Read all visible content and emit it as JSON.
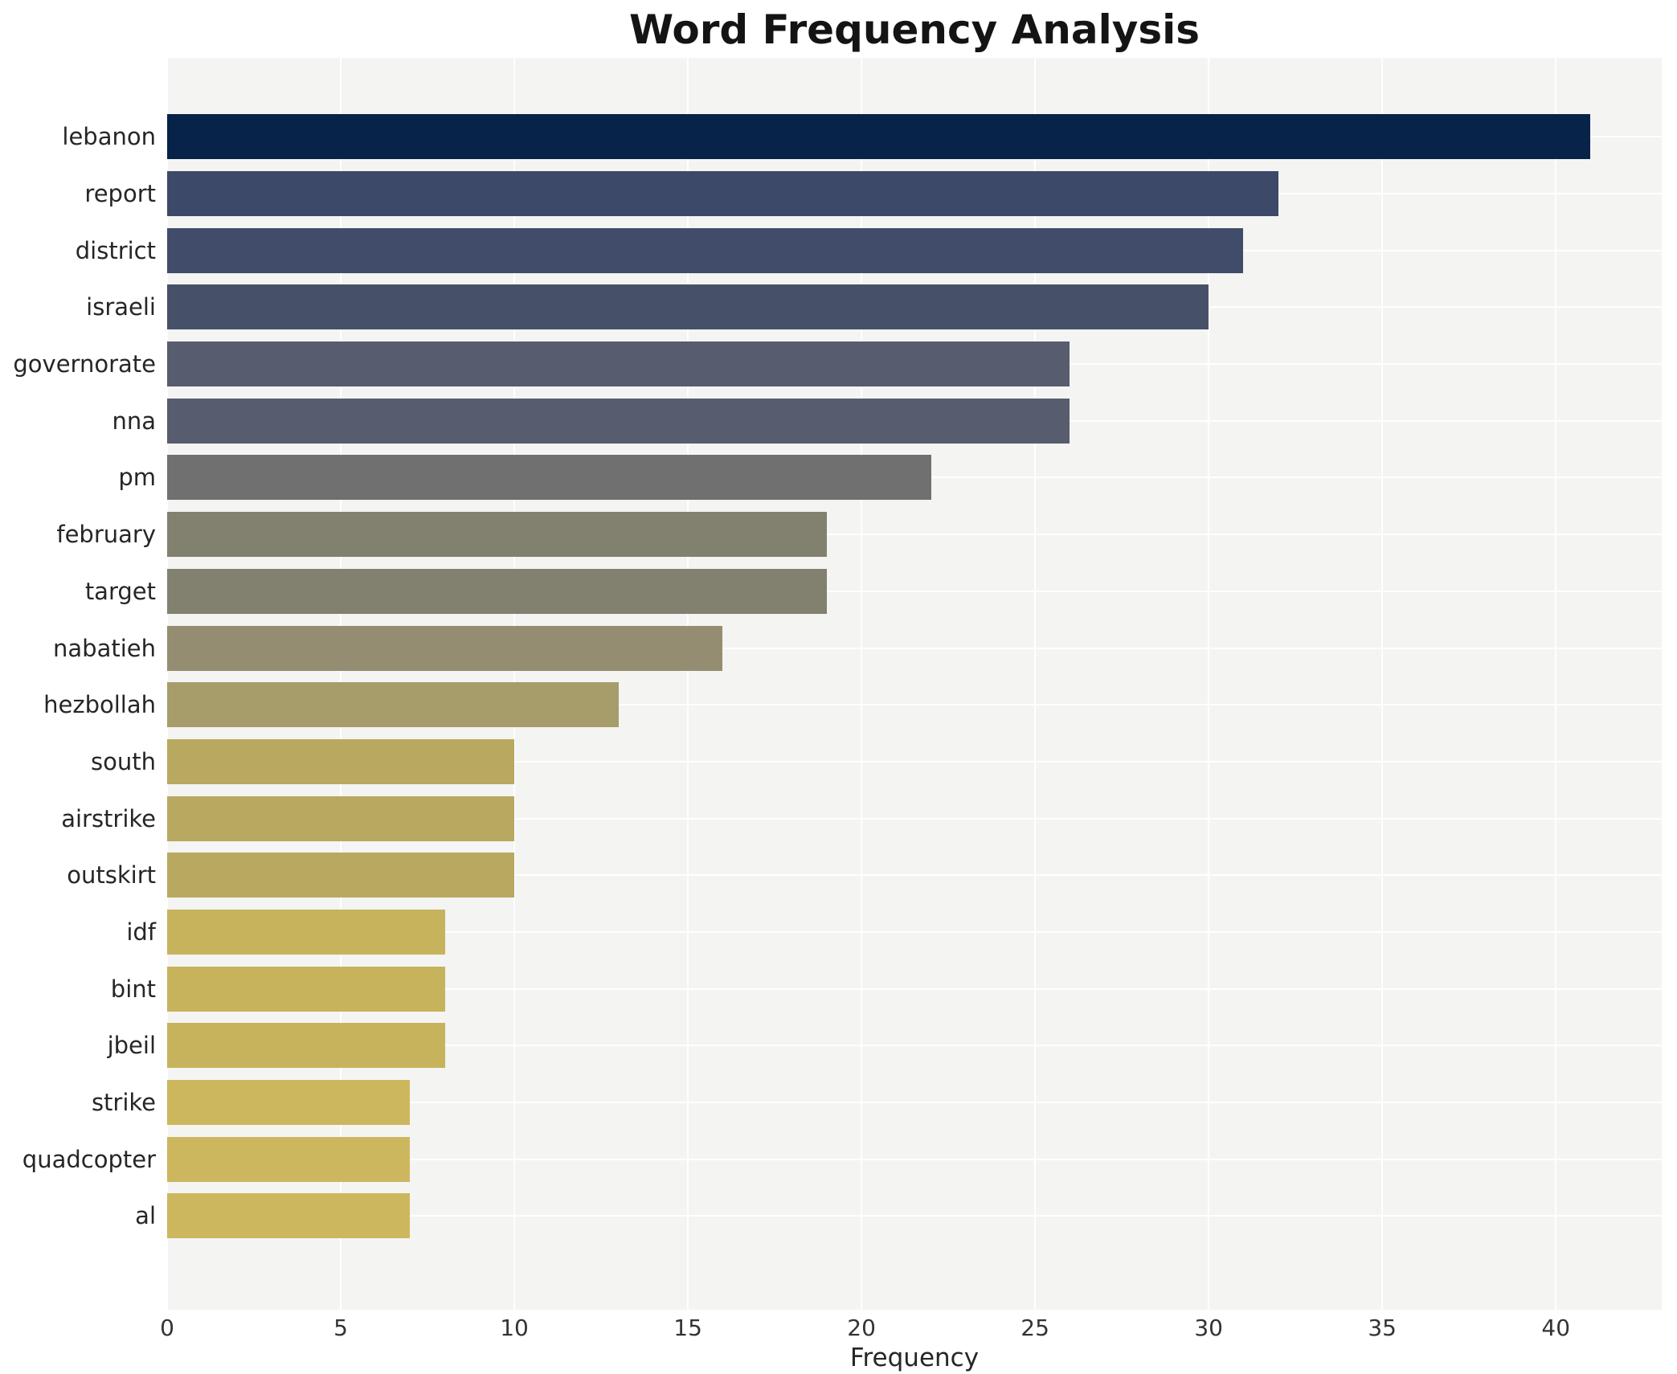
{
  "chart_data": {
    "type": "bar",
    "orientation": "horizontal",
    "title": "Word Frequency Analysis",
    "xlabel": "Frequency",
    "ylabel": "",
    "categories": [
      "lebanon",
      "report",
      "district",
      "israeli",
      "governorate",
      "nna",
      "pm",
      "february",
      "target",
      "nabatieh",
      "hezbollah",
      "south",
      "airstrike",
      "outskirt",
      "idf",
      "bint",
      "jbeil",
      "strike",
      "quadcopter",
      "al"
    ],
    "values": [
      41,
      32,
      31,
      30,
      26,
      26,
      22,
      19,
      19,
      16,
      13,
      10,
      10,
      10,
      8,
      8,
      8,
      7,
      7,
      7
    ],
    "bar_colors": [
      "#082349",
      "#3d4969",
      "#404c6a",
      "#465169",
      "#575d6e",
      "#575d6e",
      "#6f706f",
      "#82806f",
      "#82806f",
      "#948d71",
      "#a79d6a",
      "#b9a960",
      "#b9a960",
      "#b9a960",
      "#c7b35c",
      "#c7b35c",
      "#c7b35c",
      "#ccb75e",
      "#ccb75e",
      "#ccb75e"
    ],
    "xlim": [
      0,
      43.05
    ],
    "xticks": [
      0,
      5,
      10,
      15,
      20,
      25,
      30,
      35,
      40
    ],
    "grid": true,
    "legend": false,
    "plot_background": "#f4f4f3",
    "grid_color": "#ffffff"
  }
}
